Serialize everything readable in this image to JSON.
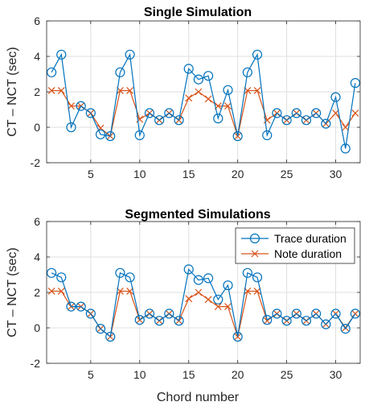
{
  "figure": {
    "shared_xlabel": "Chord number",
    "shared_ylabel": "CT – NCT (sec)",
    "colors": {
      "trace": "#0072BD",
      "note": "#D95319",
      "grid": "#dfdfdf",
      "axis": "#262626"
    }
  },
  "chart_data": [
    {
      "type": "line",
      "title": "Single Simulation",
      "xlabel": "",
      "ylabel": "CT – NCT (sec)",
      "xlim": [
        0.5,
        32.5
      ],
      "ylim": [
        -2,
        6
      ],
      "xticks": [
        5,
        10,
        15,
        20,
        25,
        30
      ],
      "yticks": [
        -2,
        0,
        2,
        4,
        6
      ],
      "grid": true,
      "legend": null,
      "x": [
        1,
        2,
        3,
        4,
        5,
        6,
        7,
        8,
        9,
        10,
        11,
        12,
        13,
        14,
        15,
        16,
        17,
        18,
        19,
        20,
        21,
        22,
        23,
        24,
        25,
        26,
        27,
        28,
        29,
        30,
        31,
        32
      ],
      "series": [
        {
          "name": "Trace duration",
          "marker": "circle",
          "color": "#0072BD",
          "values": [
            3.1,
            4.1,
            0.0,
            1.2,
            0.8,
            -0.4,
            -0.5,
            3.1,
            4.1,
            -0.45,
            0.8,
            0.4,
            0.8,
            0.4,
            3.3,
            2.7,
            2.9,
            0.5,
            2.1,
            -0.5,
            3.1,
            4.1,
            -0.45,
            0.8,
            0.4,
            0.8,
            0.4,
            0.8,
            0.2,
            1.7,
            -1.2,
            2.5
          ]
        },
        {
          "name": "Note duration",
          "marker": "x",
          "color": "#D95319",
          "values": [
            2.07,
            2.07,
            1.2,
            1.2,
            0.8,
            -0.05,
            -0.5,
            2.07,
            2.07,
            0.45,
            0.8,
            0.4,
            0.8,
            0.4,
            1.65,
            2.0,
            1.6,
            1.2,
            1.2,
            -0.5,
            2.07,
            2.07,
            0.4,
            0.8,
            0.4,
            0.8,
            0.4,
            0.8,
            0.2,
            0.8,
            0.0,
            0.8
          ]
        }
      ]
    },
    {
      "type": "line",
      "title": "Segmented Simulations",
      "xlabel": "Chord number",
      "ylabel": "CT – NCT (sec)",
      "xlim": [
        0.5,
        32.5
      ],
      "ylim": [
        -2,
        6
      ],
      "xticks": [
        5,
        10,
        15,
        20,
        25,
        30
      ],
      "yticks": [
        -2,
        0,
        2,
        4,
        6
      ],
      "grid": true,
      "legend": "top-right",
      "x": [
        1,
        2,
        3,
        4,
        5,
        6,
        7,
        8,
        9,
        10,
        11,
        12,
        13,
        14,
        15,
        16,
        17,
        18,
        19,
        20,
        21,
        22,
        23,
        24,
        25,
        26,
        27,
        28,
        29,
        30,
        31,
        32
      ],
      "series": [
        {
          "name": "Trace duration",
          "marker": "circle",
          "color": "#0072BD",
          "values": [
            3.1,
            2.85,
            1.2,
            1.2,
            0.8,
            -0.05,
            -0.5,
            3.1,
            2.85,
            0.45,
            0.8,
            0.4,
            0.8,
            0.4,
            3.3,
            2.7,
            2.8,
            1.6,
            2.4,
            -0.5,
            3.1,
            2.85,
            0.45,
            0.8,
            0.4,
            0.8,
            0.4,
            0.8,
            0.2,
            0.8,
            -0.05,
            0.8
          ]
        },
        {
          "name": "Note duration",
          "marker": "x",
          "color": "#D95319",
          "values": [
            2.07,
            2.07,
            1.2,
            1.2,
            0.8,
            -0.05,
            -0.5,
            2.07,
            2.07,
            0.45,
            0.8,
            0.4,
            0.8,
            0.4,
            1.65,
            2.0,
            1.6,
            1.2,
            1.2,
            -0.5,
            2.07,
            2.07,
            0.4,
            0.8,
            0.4,
            0.8,
            0.4,
            0.8,
            0.2,
            0.8,
            0.0,
            0.8
          ]
        }
      ]
    }
  ]
}
